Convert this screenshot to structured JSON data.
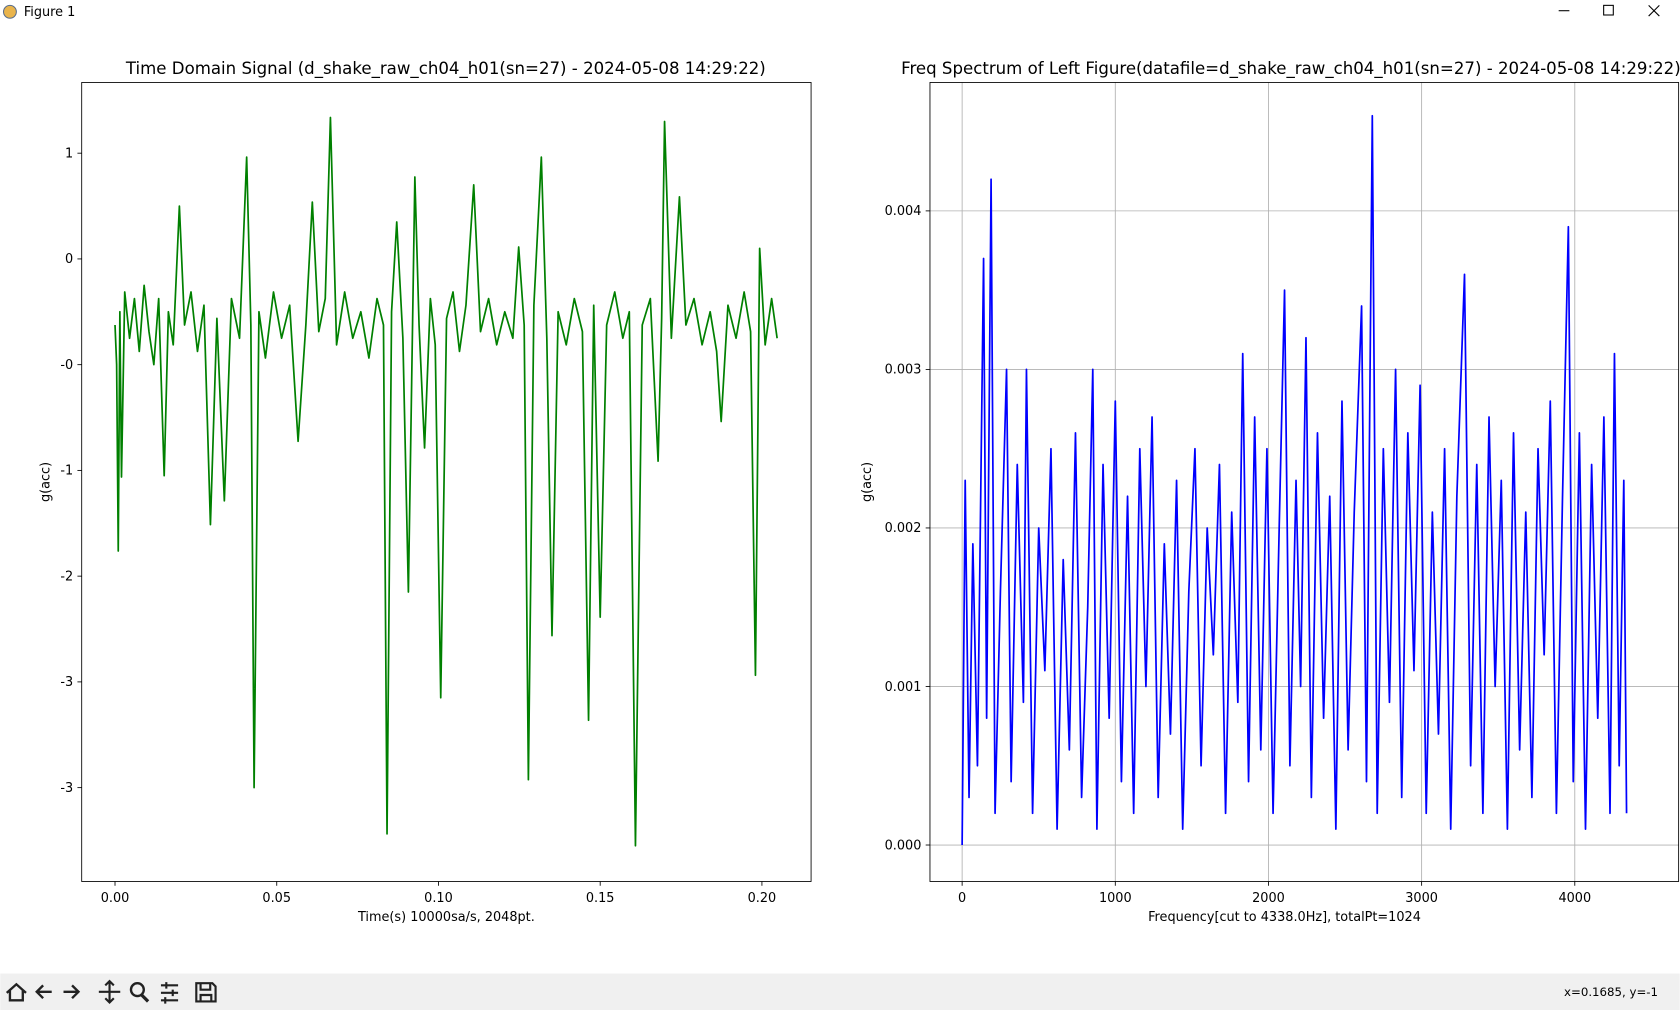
{
  "window": {
    "title": "Figure 1",
    "status": "x=0.1685, y=-1"
  },
  "chart_data": [
    {
      "type": "line",
      "title": "Time Domain Signal (d_shake_raw_ch04_h01(sn=27) - 2024-05-08 14:29:22)",
      "xlabel": "Time(s) 10000sa/s, 2048pt.",
      "ylabel": "g(acc)",
      "color": "#008000",
      "grid": false,
      "xlim": [
        -0.0103,
        0.2152
      ],
      "ylim": [
        -4.51,
        1.535
      ],
      "xticks": [
        {
          "value": 0,
          "label": "0.00"
        },
        {
          "value": 0.05,
          "label": "0.05"
        },
        {
          "value": 0.1,
          "label": "0.10"
        },
        {
          "value": 0.15,
          "label": "0.15"
        },
        {
          "value": 0.2,
          "label": "0.20"
        }
      ],
      "yticks": [
        {
          "value": 1.0,
          "label": "1"
        },
        {
          "value": 0.2,
          "label": "0"
        },
        {
          "value": -0.6,
          "label": "-0"
        },
        {
          "value": -1.4,
          "label": "-1"
        },
        {
          "value": -2.2,
          "label": "-2"
        },
        {
          "value": -3.0,
          "label": "-3"
        },
        {
          "value": -3.8,
          "label": "-3"
        }
      ],
      "x": [
        0.0,
        0.0005,
        0.001,
        0.0015,
        0.002,
        0.003,
        0.0045,
        0.006,
        0.0075,
        0.009,
        0.0105,
        0.012,
        0.0135,
        0.0152,
        0.0165,
        0.018,
        0.0199,
        0.0215,
        0.0235,
        0.0255,
        0.0275,
        0.0295,
        0.0315,
        0.0338,
        0.036,
        0.0385,
        0.0407,
        0.042,
        0.043,
        0.0445,
        0.0465,
        0.049,
        0.0515,
        0.054,
        0.0566,
        0.059,
        0.061,
        0.063,
        0.065,
        0.0666,
        0.0685,
        0.071,
        0.0735,
        0.076,
        0.0785,
        0.081,
        0.083,
        0.0841,
        0.0855,
        0.0871,
        0.089,
        0.0907,
        0.0927,
        0.094,
        0.0957,
        0.0975,
        0.099,
        0.1007,
        0.1025,
        0.1045,
        0.1065,
        0.1085,
        0.1109,
        0.113,
        0.1155,
        0.118,
        0.1205,
        0.123,
        0.1248,
        0.1265,
        0.1278,
        0.1295,
        0.1318,
        0.1335,
        0.1351,
        0.137,
        0.1395,
        0.142,
        0.1445,
        0.1464,
        0.148,
        0.15,
        0.152,
        0.1545,
        0.157,
        0.159,
        0.1609,
        0.163,
        0.1655,
        0.1679,
        0.169,
        0.1699,
        0.172,
        0.1745,
        0.1765,
        0.179,
        0.1815,
        0.184,
        0.186,
        0.1874,
        0.1895,
        0.192,
        0.1945,
        0.1965,
        0.198,
        0.1993,
        0.201,
        0.203,
        0.2047
      ],
      "values": [
        -0.3,
        -0.6,
        -2.01,
        -0.2,
        -1.45,
        -0.05,
        -0.4,
        -0.1,
        -0.5,
        0.0,
        -0.35,
        -0.6,
        -0.1,
        -1.44,
        -0.2,
        -0.45,
        0.6,
        -0.3,
        -0.05,
        -0.5,
        -0.15,
        -1.81,
        -0.25,
        -1.63,
        -0.1,
        -0.4,
        0.97,
        -0.3,
        -3.8,
        -0.2,
        -0.55,
        -0.05,
        -0.4,
        -0.15,
        -1.18,
        -0.3,
        0.63,
        -0.35,
        -0.1,
        1.27,
        -0.45,
        -0.05,
        -0.4,
        -0.2,
        -0.55,
        -0.1,
        -0.3,
        -4.15,
        -0.2,
        0.48,
        -0.4,
        -2.32,
        0.82,
        -0.3,
        -1.23,
        -0.1,
        -0.45,
        -3.12,
        -0.25,
        -0.05,
        -0.5,
        -0.15,
        0.76,
        -0.35,
        -0.1,
        -0.45,
        -0.2,
        -0.4,
        0.29,
        -0.3,
        -3.74,
        -0.15,
        0.97,
        -0.4,
        -2.65,
        -0.2,
        -0.45,
        -0.1,
        -0.35,
        -3.29,
        -0.15,
        -2.51,
        -0.3,
        -0.05,
        -0.4,
        -0.2,
        -4.24,
        -0.3,
        -0.1,
        -1.33,
        -0.25,
        1.24,
        -0.4,
        0.67,
        -0.3,
        -0.1,
        -0.45,
        -0.2,
        -0.5,
        -1.03,
        -0.15,
        -0.4,
        -0.05,
        -0.35,
        -2.95,
        0.28,
        -0.45,
        -0.1,
        -0.4
      ]
    },
    {
      "type": "line",
      "title": "Freq Spectrum of Left Figure(datafile=d_shake_raw_ch04_h01(sn=27) - 2024-05-08 14:29:22)",
      "xlabel": "Frequency[cut to 4338.0Hz], totalPt=1024",
      "ylabel": "g(acc)",
      "color": "#0000ff",
      "grid": true,
      "xlim": [
        -210,
        4678
      ],
      "ylim": [
        -0.00023,
        0.00481
      ],
      "xticks": [
        0,
        1000,
        2000,
        3000,
        4000
      ],
      "yticks": [
        {
          "value": 0,
          "label": "0.000"
        },
        {
          "value": 0.001,
          "label": "0.001"
        },
        {
          "value": 0.002,
          "label": "0.002"
        },
        {
          "value": 0.003,
          "label": "0.003"
        },
        {
          "value": 0.004,
          "label": "0.004"
        }
      ],
      "x": [
        0,
        20,
        45,
        70,
        100,
        140,
        160,
        189,
        215,
        250,
        290,
        320,
        360,
        400,
        420,
        460,
        500,
        540,
        580,
        620,
        660,
        700,
        740,
        780,
        820,
        853,
        880,
        920,
        960,
        1000,
        1040,
        1080,
        1120,
        1160,
        1200,
        1240,
        1280,
        1320,
        1360,
        1400,
        1440,
        1480,
        1520,
        1560,
        1600,
        1640,
        1680,
        1720,
        1760,
        1800,
        1832,
        1870,
        1910,
        1950,
        1990,
        2030,
        2070,
        2105,
        2140,
        2180,
        2210,
        2245,
        2280,
        2320,
        2360,
        2400,
        2440,
        2480,
        2520,
        2560,
        2608,
        2640,
        2678,
        2710,
        2750,
        2790,
        2830,
        2870,
        2910,
        2950,
        2990,
        3030,
        3070,
        3110,
        3150,
        3190,
        3230,
        3280,
        3320,
        3360,
        3400,
        3440,
        3480,
        3520,
        3560,
        3600,
        3640,
        3680,
        3720,
        3760,
        3800,
        3840,
        3880,
        3920,
        3958,
        3990,
        4030,
        4070,
        4110,
        4150,
        4190,
        4230,
        4259,
        4290,
        4320,
        4338
      ],
      "values": [
        0,
        0.0023,
        0.0003,
        0.0019,
        0.0005,
        0.0037,
        0.0008,
        0.0042,
        0.0002,
        0.0016,
        0.003,
        0.0004,
        0.0024,
        0.0009,
        0.003,
        0.0002,
        0.002,
        0.0011,
        0.0025,
        0.0001,
        0.0018,
        0.0006,
        0.0026,
        0.0003,
        0.0015,
        0.003,
        0.0001,
        0.0024,
        0.0008,
        0.0028,
        0.0004,
        0.0022,
        0.0002,
        0.0025,
        0.001,
        0.0027,
        0.0003,
        0.0019,
        0.0007,
        0.0023,
        0.0001,
        0.0016,
        0.0025,
        0.0005,
        0.002,
        0.0012,
        0.0024,
        0.0002,
        0.0021,
        0.0009,
        0.0031,
        0.0004,
        0.0027,
        0.0006,
        0.0025,
        0.0002,
        0.002,
        0.0035,
        0.0005,
        0.0023,
        0.001,
        0.0032,
        0.0003,
        0.0026,
        0.0008,
        0.0022,
        0.0001,
        0.0028,
        0.0006,
        0.0021,
        0.0034,
        0.0004,
        0.0046,
        0.0002,
        0.0025,
        0.0009,
        0.003,
        0.0003,
        0.0026,
        0.0011,
        0.0029,
        0.0002,
        0.0021,
        0.0007,
        0.0025,
        0.0001,
        0.0022,
        0.0036,
        0.0005,
        0.0024,
        0.0002,
        0.0027,
        0.001,
        0.0023,
        0.0001,
        0.0026,
        0.0006,
        0.0021,
        0.0003,
        0.0025,
        0.0012,
        0.0028,
        0.0002,
        0.0022,
        0.0039,
        0.0004,
        0.0026,
        0.0001,
        0.0024,
        0.0008,
        0.0027,
        0.0002,
        0.0031,
        0.0005,
        0.0023,
        0.0002
      ]
    }
  ]
}
